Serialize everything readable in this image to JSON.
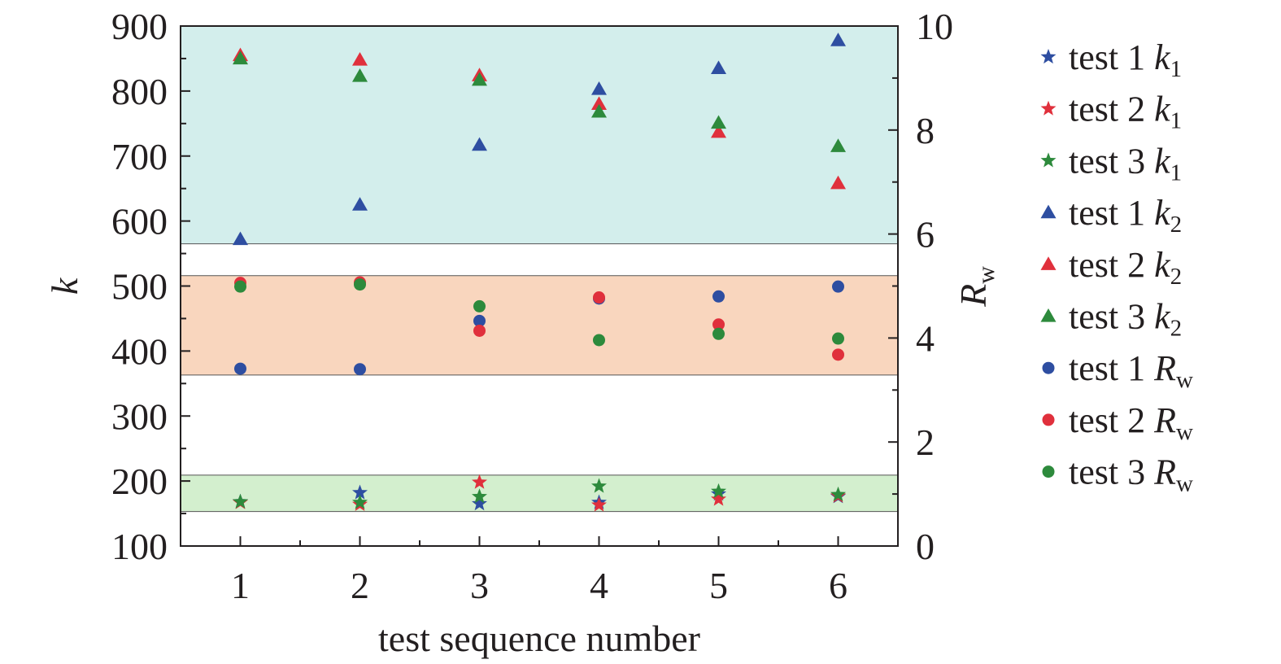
{
  "chart_data": {
    "type": "scatter",
    "xlabel": "test sequence number",
    "ylabel_left": "k",
    "ylabel_right": {
      "main": "R",
      "sub": "w"
    },
    "x": [
      1,
      2,
      3,
      4,
      5,
      6
    ],
    "xlim": [
      0.5,
      6.5
    ],
    "ylim_left": [
      100,
      900
    ],
    "ylim_right": [
      0,
      10
    ],
    "x_ticks": [
      "1",
      "2",
      "3",
      "4",
      "5",
      "6"
    ],
    "y_left_ticks": [
      "100",
      "200",
      "300",
      "400",
      "500",
      "600",
      "700",
      "800",
      "900"
    ],
    "y_right_ticks": [
      "0",
      "2",
      "4",
      "6",
      "8",
      "10"
    ],
    "grid": false,
    "legend_position": "right, outside plot",
    "bands": [
      {
        "name": "k2 range",
        "axis": "left",
        "from": 565,
        "to": 900,
        "color": "#d3eeec"
      },
      {
        "name": "Rw range",
        "axis": "left",
        "from": 363,
        "to": 516,
        "color": "#f9d6be"
      },
      {
        "name": "k1 range",
        "axis": "left",
        "from": 153,
        "to": 209,
        "color": "#d3efce"
      }
    ],
    "series": [
      {
        "name_prefix": "test 1 ",
        "name_var": "k",
        "name_sub": "1",
        "marker": "star",
        "color": "#2e4ea1",
        "axis": "left",
        "values": [
          168,
          182,
          165,
          167,
          180,
          176
        ]
      },
      {
        "name_prefix": "test 2 ",
        "name_var": "k",
        "name_sub": "1",
        "marker": "star",
        "color": "#e0303c",
        "axis": "left",
        "values": [
          167,
          164,
          198,
          163,
          172,
          177
        ]
      },
      {
        "name_prefix": "test 3 ",
        "name_var": "k",
        "name_sub": "1",
        "marker": "star",
        "color": "#2d8a3c",
        "axis": "left",
        "values": [
          168,
          167,
          176,
          192,
          184,
          179
        ]
      },
      {
        "name_prefix": "test 1 ",
        "name_var": "k",
        "name_sub": "2",
        "marker": "triangle",
        "color": "#2e4ea1",
        "axis": "left",
        "values": [
          572,
          625,
          717,
          803,
          835,
          878
        ]
      },
      {
        "name_prefix": "test 2 ",
        "name_var": "k",
        "name_sub": "2",
        "marker": "triangle",
        "color": "#e0303c",
        "axis": "left",
        "values": [
          855,
          848,
          824,
          780,
          737,
          658
        ]
      },
      {
        "name_prefix": "test 3 ",
        "name_var": "k",
        "name_sub": "2",
        "marker": "triangle",
        "color": "#2d8a3c",
        "axis": "left",
        "values": [
          850,
          823,
          817,
          768,
          751,
          715
        ]
      },
      {
        "name_prefix": "test 1 ",
        "name_var": "R",
        "name_sub": "w",
        "marker": "circle",
        "color": "#2e4ea1",
        "axis": "right",
        "values": [
          3.41,
          3.4,
          4.33,
          4.76,
          4.8,
          4.99
        ]
      },
      {
        "name_prefix": "test 2 ",
        "name_var": "R",
        "name_sub": "w",
        "marker": "circle",
        "color": "#e0303c",
        "axis": "right",
        "values": [
          5.06,
          5.07,
          4.14,
          4.78,
          4.26,
          3.68
        ]
      },
      {
        "name_prefix": "test 3 ",
        "name_var": "R",
        "name_sub": "w",
        "marker": "circle",
        "color": "#2d8a3c",
        "axis": "right",
        "values": [
          4.99,
          5.03,
          4.61,
          3.96,
          4.08,
          3.99
        ]
      }
    ]
  }
}
